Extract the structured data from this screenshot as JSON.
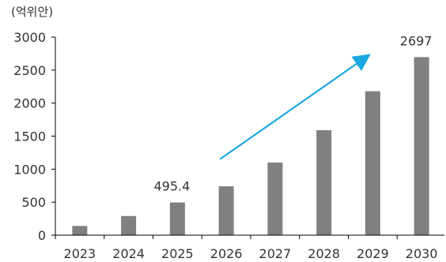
{
  "colors": {
    "bar": "#808080",
    "axis": "#000000",
    "text": "#333333",
    "trend_arrow": "#1aa7e0"
  },
  "chart_data": {
    "type": "bar",
    "unit_label": "(억위안)",
    "categories": [
      "2023",
      "2024",
      "2025",
      "2026",
      "2027",
      "2028",
      "2029",
      "2030"
    ],
    "values": [
      140,
      290,
      495.4,
      740,
      1100,
      1590,
      2180,
      2697
    ],
    "ylim": [
      0,
      3000
    ],
    "yticks": [
      0,
      500,
      1000,
      1500,
      2000,
      2500,
      3000
    ],
    "grid": false,
    "legend": "none",
    "data_labels": [
      {
        "category": "2025",
        "text": "495.4"
      },
      {
        "category": "2030",
        "text": "2697"
      }
    ],
    "annotations": [
      {
        "type": "trend-arrow",
        "from_category": "2026",
        "from_value": 1150,
        "to_category": "2029",
        "to_value": 2700
      }
    ]
  }
}
